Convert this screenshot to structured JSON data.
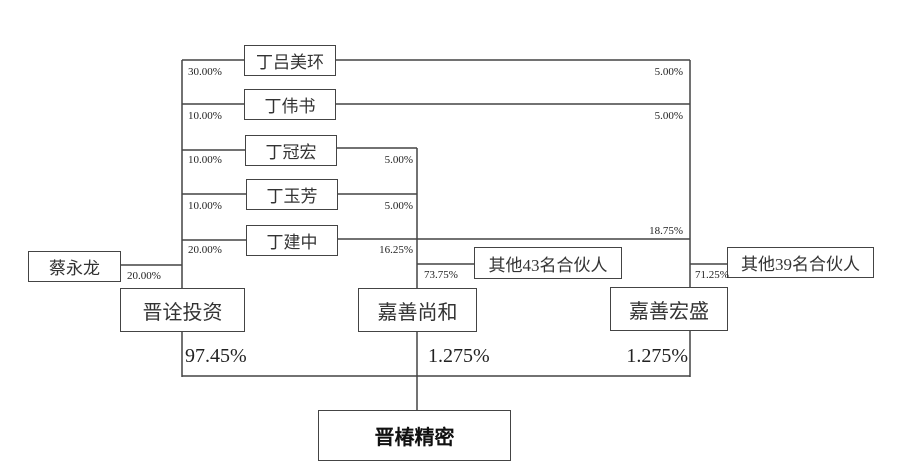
{
  "entities": {
    "ding_lumeihuan": "丁吕美环",
    "ding_weishu": "丁伟书",
    "ding_guanhong": "丁冠宏",
    "ding_yufang": "丁玉芳",
    "ding_jianzhong": "丁建中",
    "cai_yonglong": "蔡永龙",
    "jinquan": "晋诠投资",
    "jiashan_shanghe": "嘉善尚和",
    "jiashan_hongsheng": "嘉善宏盛",
    "others_43": "其他43名合伙人",
    "others_39": "其他39名合伙人",
    "target": "晋椿精密"
  },
  "percentages": {
    "lumeihuan_jinquan": "30.00%",
    "weishu_jinquan": "10.00%",
    "guanhong_jinquan": "10.00%",
    "yufang_jinquan": "10.00%",
    "jianzhong_jinquan": "20.00%",
    "cai_jinquan": "20.00%",
    "lumeihuan_hongsheng": "5.00%",
    "weishu_hongsheng": "5.00%",
    "guanhong_shanghe": "5.00%",
    "yufang_shanghe": "5.00%",
    "jianzhong_shanghe": "16.25%",
    "jianzhong_hongsheng": "18.75%",
    "others43_shanghe": "73.75%",
    "others39_hongsheng": "71.25%",
    "jinquan_target": "97.45%",
    "shanghe_target": "1.275%",
    "hongsheng_target": "1.275%"
  }
}
